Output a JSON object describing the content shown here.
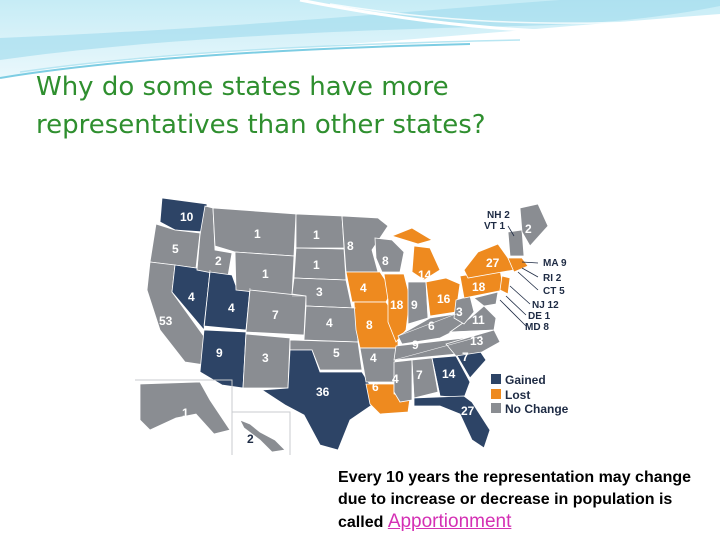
{
  "slide": {
    "title_lines": [
      "Why do some states have more",
      "representatives than other states?"
    ],
    "caption_text": "Every 10 years the representation may change due to increase or decrease in population is called ",
    "caption_term": "Apportionment"
  },
  "colors": {
    "gained": "#2d4466",
    "lost": "#ee8a1f",
    "no_change": "#8a8d92",
    "title": "#2f8f2f",
    "term": "#d430b4"
  },
  "legend": [
    {
      "label": "Gained",
      "status": "gained"
    },
    {
      "label": "Lost",
      "status": "lost"
    },
    {
      "label": "No Change",
      "status": "no_change"
    }
  ],
  "map_labels": {
    "states": [
      {
        "state": "WA",
        "value": "10",
        "status": "gained"
      },
      {
        "state": "OR",
        "value": "5",
        "status": "no_change"
      },
      {
        "state": "CA",
        "value": "53",
        "status": "no_change"
      },
      {
        "state": "ID",
        "value": "2",
        "status": "no_change"
      },
      {
        "state": "NV",
        "value": "4",
        "status": "gained"
      },
      {
        "state": "UT",
        "value": "4",
        "status": "gained"
      },
      {
        "state": "AZ",
        "value": "9",
        "status": "gained"
      },
      {
        "state": "MT",
        "value": "1",
        "status": "no_change"
      },
      {
        "state": "WY",
        "value": "1",
        "status": "no_change"
      },
      {
        "state": "CO",
        "value": "7",
        "status": "no_change"
      },
      {
        "state": "NM",
        "value": "3",
        "status": "no_change"
      },
      {
        "state": "ND",
        "value": "1",
        "status": "no_change"
      },
      {
        "state": "SD",
        "value": "1",
        "status": "no_change"
      },
      {
        "state": "NE",
        "value": "3",
        "status": "no_change"
      },
      {
        "state": "KS",
        "value": "4",
        "status": "no_change"
      },
      {
        "state": "OK",
        "value": "5",
        "status": "no_change"
      },
      {
        "state": "TX",
        "value": "36",
        "status": "gained"
      },
      {
        "state": "MN",
        "value": "8",
        "status": "no_change"
      },
      {
        "state": "IA",
        "value": "4",
        "status": "lost"
      },
      {
        "state": "MO",
        "value": "8",
        "status": "lost"
      },
      {
        "state": "AR",
        "value": "4",
        "status": "no_change"
      },
      {
        "state": "LA",
        "value": "6",
        "status": "lost"
      },
      {
        "state": "WI",
        "value": "8",
        "status": "no_change"
      },
      {
        "state": "IL",
        "value": "18",
        "status": "lost"
      },
      {
        "state": "MI",
        "value": "14",
        "status": "lost"
      },
      {
        "state": "IN",
        "value": "9",
        "status": "no_change"
      },
      {
        "state": "OH",
        "value": "16",
        "status": "lost"
      },
      {
        "state": "KY",
        "value": "6",
        "status": "no_change"
      },
      {
        "state": "TN",
        "value": "9",
        "status": "no_change"
      },
      {
        "state": "MS",
        "value": "4",
        "status": "no_change"
      },
      {
        "state": "AL",
        "value": "7",
        "status": "no_change"
      },
      {
        "state": "GA",
        "value": "14",
        "status": "gained"
      },
      {
        "state": "FL",
        "value": "27",
        "status": "gained"
      },
      {
        "state": "SC",
        "value": "7",
        "status": "gained"
      },
      {
        "state": "NC",
        "value": "13",
        "status": "no_change"
      },
      {
        "state": "VA",
        "value": "11",
        "status": "no_change"
      },
      {
        "state": "WV",
        "value": "3",
        "status": "no_change"
      },
      {
        "state": "PA",
        "value": "18",
        "status": "lost"
      },
      {
        "state": "NY",
        "value": "27",
        "status": "lost"
      },
      {
        "state": "ME",
        "value": "2",
        "status": "no_change"
      },
      {
        "state": "AK",
        "value": "1",
        "status": "no_change"
      },
      {
        "state": "HI",
        "value": "2",
        "status": "no_change"
      }
    ],
    "callouts": [
      {
        "text": "NH 2"
      },
      {
        "text": "VT 1"
      },
      {
        "text": "MA 9"
      },
      {
        "text": "RI 2"
      },
      {
        "text": "CT 5"
      },
      {
        "text": "NJ 12"
      },
      {
        "text": "DE 1"
      },
      {
        "text": "MD 8"
      }
    ]
  }
}
